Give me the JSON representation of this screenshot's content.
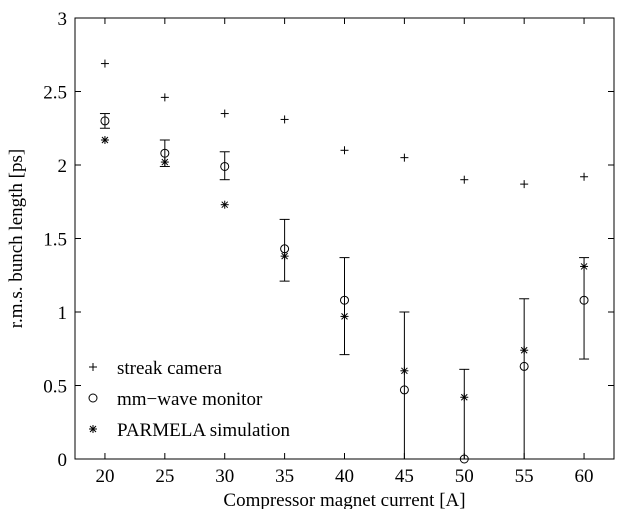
{
  "chart_data": {
    "type": "scatter",
    "xlabel": "Compressor magnet current [A]",
    "ylabel": "r.m.s. bunch length [ps]",
    "xlim": [
      17.5,
      62.5
    ],
    "ylim": [
      0,
      3
    ],
    "xticks": [
      20,
      25,
      30,
      35,
      40,
      45,
      50,
      55,
      60
    ],
    "yticks": [
      0,
      0.5,
      1,
      1.5,
      2,
      2.5,
      3
    ],
    "ytick_labels": [
      "0",
      "0.5",
      "1",
      "1.5",
      "2",
      "2.5",
      "3"
    ],
    "grid": false,
    "legend_position": "bottom-left",
    "series": [
      {
        "name": "streak camera",
        "marker": "plus",
        "x": [
          20,
          25,
          30,
          35,
          40,
          45,
          50,
          55,
          60
        ],
        "y": [
          2.69,
          2.46,
          2.35,
          2.31,
          2.1,
          2.05,
          1.9,
          1.87,
          1.92
        ]
      },
      {
        "name": "mm−wave monitor",
        "marker": "circle",
        "x": [
          20,
          25,
          30,
          35,
          40,
          45,
          50,
          55,
          60
        ],
        "y": [
          2.3,
          2.08,
          1.99,
          1.43,
          1.08,
          0.47,
          0.0,
          0.63,
          1.08
        ],
        "error_low": [
          2.25,
          1.99,
          1.9,
          1.21,
          0.71,
          0.0,
          0.0,
          0.0,
          0.68
        ],
        "error_high": [
          2.35,
          2.17,
          2.09,
          1.63,
          1.37,
          1.0,
          0.61,
          1.09,
          1.37
        ]
      },
      {
        "name": "PARMELA simulation",
        "marker": "asterisk",
        "x": [
          20,
          25,
          30,
          35,
          40,
          45,
          50,
          55,
          60
        ],
        "y": [
          2.17,
          2.02,
          1.73,
          1.38,
          0.97,
          0.6,
          0.42,
          0.74,
          1.31
        ]
      }
    ]
  }
}
